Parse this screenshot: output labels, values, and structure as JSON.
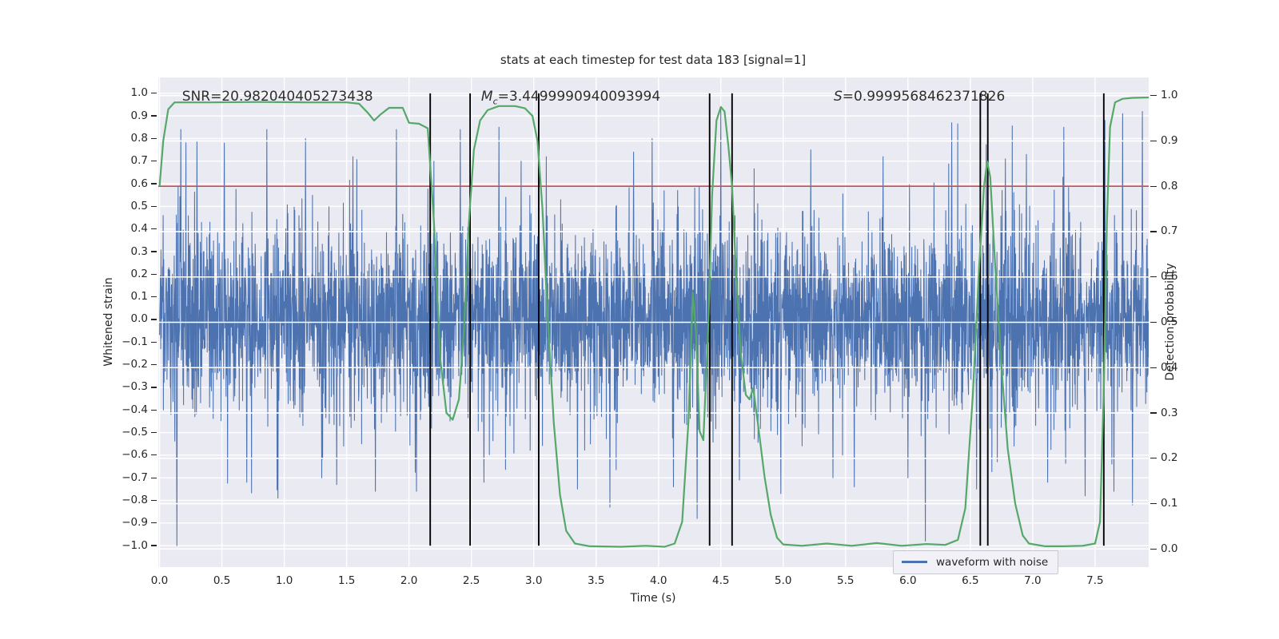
{
  "figure": {
    "background": "#ffffff",
    "plot_background": "#EAEAF2",
    "grid_color": "#ffffff",
    "text_color": "#262626"
  },
  "chart_data": {
    "type": "line",
    "title": "stats at each timestep for test data 183 [signal=1]",
    "xlabel": "Time (s)",
    "ylabel_left": "Whitened strain",
    "ylabel_right": "Detection probability",
    "xlim": [
      -0.01,
      7.93
    ],
    "ylim_left": [
      -1.095,
      1.07
    ],
    "ylim_right": [
      -0.04,
      1.04
    ],
    "xticks": [
      0.0,
      0.5,
      1.0,
      1.5,
      2.0,
      2.5,
      3.0,
      3.5,
      4.0,
      4.5,
      5.0,
      5.5,
      6.0,
      6.5,
      7.0,
      7.5
    ],
    "yticks_left": [
      1.0,
      0.9,
      0.8,
      0.7,
      0.6,
      0.5,
      0.4,
      0.3,
      0.2,
      0.1,
      0.0,
      -0.1,
      -0.2,
      -0.3,
      -0.4,
      -0.5,
      -0.6,
      -0.7,
      -0.8,
      -0.9,
      -1.0
    ],
    "yticks_right": [
      1.0,
      0.9,
      0.8,
      0.7,
      0.6,
      0.5,
      0.4,
      0.3,
      0.2,
      0.1,
      0.0
    ],
    "grid": true,
    "legend_location": "lower right",
    "annotations": [
      {
        "var": "SNR",
        "sub": "",
        "italic": false,
        "value": "20.982040405273438",
        "x_frac": 0.024
      },
      {
        "var": "M",
        "sub": "c",
        "italic": true,
        "value": "3.4499990940093994",
        "x_frac": 0.326
      },
      {
        "var": "S",
        "sub": "",
        "italic": true,
        "value": "0.9999568462371826",
        "x_frac": 0.682
      }
    ],
    "threshold_line": {
      "y_right_axis": 0.8,
      "color": "#C44E52"
    },
    "event_vlines": {
      "color": "#000000",
      "times": [
        2.17,
        2.49,
        3.04,
        4.41,
        4.59,
        6.58,
        6.64,
        7.57
      ]
    },
    "detection_probability_series": {
      "name": "detection probability",
      "color": "#55A868",
      "points": [
        [
          0.0,
          0.8
        ],
        [
          0.03,
          0.9
        ],
        [
          0.07,
          0.97
        ],
        [
          0.12,
          0.985
        ],
        [
          0.4,
          0.985
        ],
        [
          0.8,
          0.986
        ],
        [
          1.2,
          0.985
        ],
        [
          1.5,
          0.985
        ],
        [
          1.6,
          0.982
        ],
        [
          1.67,
          0.962
        ],
        [
          1.72,
          0.945
        ],
        [
          1.77,
          0.958
        ],
        [
          1.84,
          0.973
        ],
        [
          1.95,
          0.973
        ],
        [
          2.0,
          0.94
        ],
        [
          2.08,
          0.938
        ],
        [
          2.15,
          0.928
        ],
        [
          2.2,
          0.72
        ],
        [
          2.25,
          0.42
        ],
        [
          2.3,
          0.3
        ],
        [
          2.35,
          0.285
        ],
        [
          2.4,
          0.33
        ],
        [
          2.44,
          0.48
        ],
        [
          2.48,
          0.72
        ],
        [
          2.52,
          0.88
        ],
        [
          2.57,
          0.945
        ],
        [
          2.63,
          0.968
        ],
        [
          2.72,
          0.977
        ],
        [
          2.85,
          0.977
        ],
        [
          2.93,
          0.972
        ],
        [
          2.99,
          0.955
        ],
        [
          3.03,
          0.9
        ],
        [
          3.07,
          0.75
        ],
        [
          3.11,
          0.52
        ],
        [
          3.16,
          0.28
        ],
        [
          3.21,
          0.12
        ],
        [
          3.26,
          0.04
        ],
        [
          3.33,
          0.012
        ],
        [
          3.45,
          0.006
        ],
        [
          3.7,
          0.005
        ],
        [
          3.9,
          0.007
        ],
        [
          4.05,
          0.005
        ],
        [
          4.13,
          0.012
        ],
        [
          4.19,
          0.06
        ],
        [
          4.24,
          0.28
        ],
        [
          4.275,
          0.565
        ],
        [
          4.3,
          0.48
        ],
        [
          4.33,
          0.26
        ],
        [
          4.36,
          0.24
        ],
        [
          4.4,
          0.5
        ],
        [
          4.43,
          0.78
        ],
        [
          4.465,
          0.945
        ],
        [
          4.5,
          0.975
        ],
        [
          4.53,
          0.965
        ],
        [
          4.56,
          0.89
        ],
        [
          4.59,
          0.8
        ],
        [
          4.62,
          0.62
        ],
        [
          4.66,
          0.43
        ],
        [
          4.7,
          0.34
        ],
        [
          4.73,
          0.33
        ],
        [
          4.76,
          0.355
        ],
        [
          4.8,
          0.27
        ],
        [
          4.85,
          0.16
        ],
        [
          4.9,
          0.075
        ],
        [
          4.95,
          0.025
        ],
        [
          5.0,
          0.01
        ],
        [
          5.15,
          0.007
        ],
        [
          5.35,
          0.012
        ],
        [
          5.55,
          0.007
        ],
        [
          5.75,
          0.013
        ],
        [
          5.95,
          0.007
        ],
        [
          6.15,
          0.011
        ],
        [
          6.3,
          0.009
        ],
        [
          6.4,
          0.02
        ],
        [
          6.46,
          0.09
        ],
        [
          6.52,
          0.34
        ],
        [
          6.57,
          0.62
        ],
        [
          6.61,
          0.8
        ],
        [
          6.635,
          0.855
        ],
        [
          6.66,
          0.82
        ],
        [
          6.7,
          0.62
        ],
        [
          6.75,
          0.4
        ],
        [
          6.8,
          0.22
        ],
        [
          6.86,
          0.1
        ],
        [
          6.92,
          0.03
        ],
        [
          6.97,
          0.012
        ],
        [
          7.1,
          0.006
        ],
        [
          7.25,
          0.006
        ],
        [
          7.4,
          0.007
        ],
        [
          7.5,
          0.012
        ],
        [
          7.54,
          0.06
        ],
        [
          7.57,
          0.35
        ],
        [
          7.595,
          0.72
        ],
        [
          7.62,
          0.93
        ],
        [
          7.66,
          0.985
        ],
        [
          7.72,
          0.993
        ],
        [
          7.8,
          0.995
        ],
        [
          7.93,
          0.996
        ]
      ]
    },
    "waveform_series": {
      "name": "waveform with noise",
      "color": "#4C72B0",
      "t_start": 0.0,
      "t_end": 7.93,
      "n_samples": 3300,
      "noise_std": 0.186,
      "ar_coeff": -0.5,
      "outlier_prob": 0.012,
      "outlier_gain": 2.2,
      "clip": [
        -1.0,
        1.0
      ],
      "seed": 1830183,
      "notable_spikes": [
        [
          0.14,
          -1.0
        ],
        [
          0.17,
          0.84
        ],
        [
          0.3,
          0.79
        ],
        [
          0.52,
          0.78
        ],
        [
          0.7,
          -0.72
        ],
        [
          0.86,
          0.84
        ],
        [
          0.95,
          -0.79
        ],
        [
          1.17,
          0.8
        ],
        [
          1.3,
          -0.7
        ],
        [
          1.42,
          -0.73
        ],
        [
          1.55,
          0.72
        ],
        [
          1.73,
          -0.76
        ],
        [
          1.9,
          0.84
        ],
        [
          2.06,
          -0.76
        ],
        [
          2.2,
          0.7
        ],
        [
          2.41,
          0.84
        ],
        [
          2.6,
          -0.72
        ],
        [
          2.72,
          0.85
        ],
        [
          2.9,
          0.7
        ],
        [
          3.1,
          0.72
        ],
        [
          3.35,
          -0.75
        ],
        [
          3.61,
          -0.83
        ],
        [
          3.8,
          0.74
        ],
        [
          3.95,
          0.8
        ],
        [
          4.12,
          -0.74
        ],
        [
          4.31,
          -0.88
        ],
        [
          4.5,
          0.93
        ],
        [
          4.65,
          -0.71
        ],
        [
          4.98,
          -0.77
        ],
        [
          5.22,
          0.75
        ],
        [
          5.4,
          -0.7
        ],
        [
          5.57,
          -0.74
        ],
        [
          5.8,
          0.72
        ],
        [
          6.0,
          -0.7
        ],
        [
          6.14,
          -0.98
        ],
        [
          6.35,
          0.87
        ],
        [
          6.55,
          -0.75
        ],
        [
          6.78,
          0.71
        ],
        [
          6.95,
          0.73
        ],
        [
          7.12,
          -0.72
        ],
        [
          7.25,
          0.85
        ],
        [
          7.42,
          -0.78
        ],
        [
          7.58,
          0.88
        ],
        [
          7.65,
          -0.76
        ],
        [
          7.72,
          0.91
        ],
        [
          7.8,
          -0.82
        ],
        [
          7.88,
          0.92
        ]
      ]
    },
    "legend": {
      "entries": [
        {
          "label": "waveform with noise",
          "color": "#4C72B0"
        }
      ]
    }
  }
}
